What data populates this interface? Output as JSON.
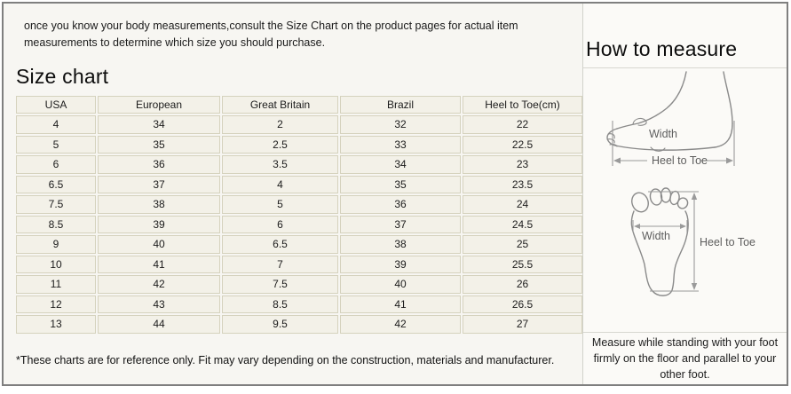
{
  "intro_text": "once you know your body measurements,consult the Size Chart on the product pages for actual item measurements to determine which size you should purchase.",
  "size_chart": {
    "title": "Size chart",
    "columns": [
      "USA",
      "European",
      "Great Britain",
      "Brazil",
      "Heel to Toe(cm)"
    ],
    "rows": [
      [
        "4",
        "34",
        "2",
        "32",
        "22"
      ],
      [
        "5",
        "35",
        "2.5",
        "33",
        "22.5"
      ],
      [
        "6",
        "36",
        "3.5",
        "34",
        "23"
      ],
      [
        "6.5",
        "37",
        "4",
        "35",
        "23.5"
      ],
      [
        "7.5",
        "38",
        "5",
        "36",
        "24"
      ],
      [
        "8.5",
        "39",
        "6",
        "37",
        "24.5"
      ],
      [
        "9",
        "40",
        "6.5",
        "38",
        "25"
      ],
      [
        "10",
        "41",
        "7",
        "39",
        "25.5"
      ],
      [
        "11",
        "42",
        "7.5",
        "40",
        "26"
      ],
      [
        "12",
        "43",
        "8.5",
        "41",
        "26.5"
      ],
      [
        "13",
        "44",
        "9.5",
        "42",
        "27"
      ]
    ],
    "footnote": "*These charts are for reference only. Fit may vary depending on the construction, materials and manufacturer."
  },
  "how_to_measure": {
    "title": "How to measure",
    "side_view": {
      "width_label": "Width",
      "heel_to_toe_label": "Heel to Toe"
    },
    "sole_view": {
      "width_label": "Width",
      "heel_to_toe_label": "Heel to Toe"
    },
    "note": "Measure while standing with your foot firmly on the floor and parallel to your other foot."
  },
  "colors": {
    "frame_border": "#7f7f7f",
    "cell_background": "#f3f1e8",
    "cell_border": "#d5d2bd",
    "divider": "#d2d2cb",
    "diagram_stroke": "#8a8a8a",
    "diagram_text": "#5d5d5d"
  }
}
